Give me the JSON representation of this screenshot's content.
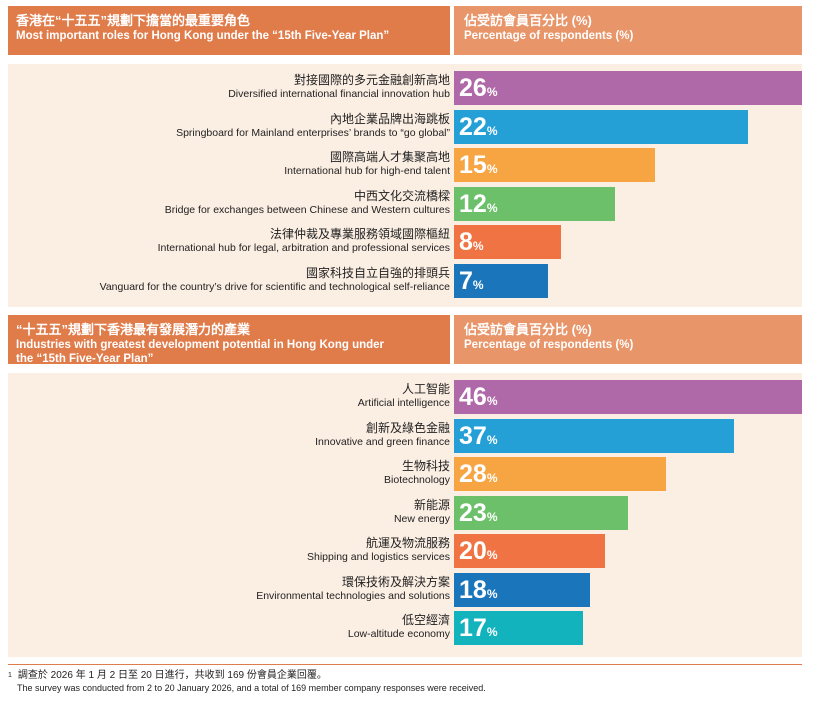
{
  "section1": {
    "title_zh": "香港在“十五五”規劃下擔當的最重要角色",
    "title_en": "Most important roles for Hong Kong under the “15th Five-Year Plan”",
    "col_zh": "佔受訪會員百分比 (%)",
    "col_en": "Percentage of respondents (%)"
  },
  "section2": {
    "title_zh": "“十五五”規劃下香港最有發展潛力的產業",
    "title_en_1": "Industries with greatest development potential in Hong Kong under",
    "title_en_2": "the “15th Five-Year Plan”",
    "col_zh": "佔受訪會員百分比 (%)",
    "col_en": "Percentage of respondents (%)"
  },
  "chart_data": [
    {
      "type": "bar",
      "orientation": "horizontal",
      "title": "Most important roles for Hong Kong under the “15th Five-Year Plan”",
      "xlim": [
        0,
        26
      ],
      "categories": [
        {
          "zh": "對接國際的多元金融創新高地",
          "en": "Diversified international financial innovation hub"
        },
        {
          "zh": "內地企業品牌出海跳板",
          "en": "Springboard for Mainland enterprises’ brands to “go global”"
        },
        {
          "zh": "國際高端人才集聚高地",
          "en": "International hub for high-end talent"
        },
        {
          "zh": "中西文化交流橋樑",
          "en": "Bridge for exchanges between Chinese and Western cultures"
        },
        {
          "zh": "法律仲裁及專業服務領域國際樞紐",
          "en": "International hub for legal, arbitration and professional services"
        },
        {
          "zh": "國家科技自立自強的排頭兵",
          "en": "Vanguard for the country’s drive for scientific and technological self-reliance"
        }
      ],
      "values": [
        26,
        22,
        15,
        12,
        8,
        7
      ],
      "colors": [
        "#b069a8",
        "#25a0d6",
        "#f7a443",
        "#6cc06a",
        "#f07344",
        "#1b75bb"
      ]
    },
    {
      "type": "bar",
      "orientation": "horizontal",
      "title": "Industries with greatest development potential in Hong Kong under the “15th Five-Year Plan”",
      "xlim": [
        0,
        46
      ],
      "categories": [
        {
          "zh": "人工智能",
          "en": "Artificial intelligence"
        },
        {
          "zh": "創新及綠色金融",
          "en": "Innovative and green finance"
        },
        {
          "zh": "生物科技",
          "en": "Biotechnology"
        },
        {
          "zh": "新能源",
          "en": "New energy"
        },
        {
          "zh": "航運及物流服務",
          "en": "Shipping and logistics services"
        },
        {
          "zh": "環保技術及解決方案",
          "en": "Environmental technologies and solutions"
        },
        {
          "zh": "低空經濟",
          "en": "Low-altitude economy"
        }
      ],
      "values": [
        46,
        37,
        28,
        23,
        20,
        18,
        17
      ],
      "colors": [
        "#b069a8",
        "#25a0d6",
        "#f7a443",
        "#6cc06a",
        "#f07344",
        "#1b75bb",
        "#12b3bd"
      ]
    }
  ],
  "footnote": {
    "marker": "1",
    "zh": "調查於 2026 年 1 月 2 日至 20 日進行，共收到 169 份會員企業回覆。",
    "en": "The survey was conducted from 2 to 20 January 2026, and a total of 169 member company responses were received."
  }
}
